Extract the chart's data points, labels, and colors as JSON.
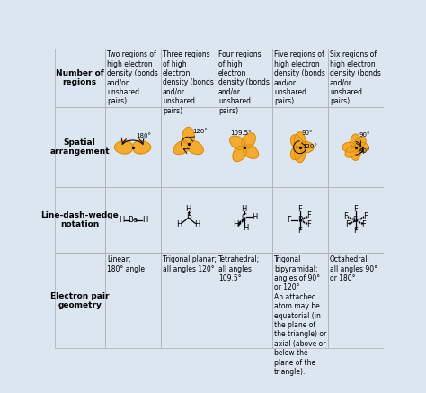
{
  "bg_color": "#dce6f1",
  "border_color": "#aaaaaa",
  "text_color": "#000000",
  "row_labels": [
    "Number of\nregions",
    "Spatial\narrangement",
    "Line-dash-wedge\nnotation",
    "Electron pair\ngeometry"
  ],
  "col_headers": [
    "Two regions of\nhigh electron\ndensity (bonds\nand/or\nunshared\npairs)",
    "Three regions\nof high\nelectron\ndensity (bonds\nand/or\nunshared\npairs)",
    "Four regions\nof high\nelectron\ndensity (bonds\nand/or\nunshared\npairs)",
    "Five regions of\nhigh electron\ndensity (bonds\nand/or\nunshared\npairs)",
    "Six regions of\nhigh electron\ndensity (bonds\nand/or\nunshared\npairs)"
  ],
  "geometry_labels": [
    "Linear;\n180° angle",
    "Trigonal planar;\nall angles 120°",
    "Tetrahedral;\nall angles\n109.5°",
    "Trigonal\nbipyramidal;\nangles of 90°\nor 120°\nAn attached\natom may be\nequatorial (in\nthe plane of\nthe triangle) or\naxial (above or\nbelow the\nplane of the\ntriangle).",
    "Octahedral;\nall angles 90°\nor 180°"
  ],
  "orbital_color": "#f5a623",
  "orbital_edge": "#b87010"
}
